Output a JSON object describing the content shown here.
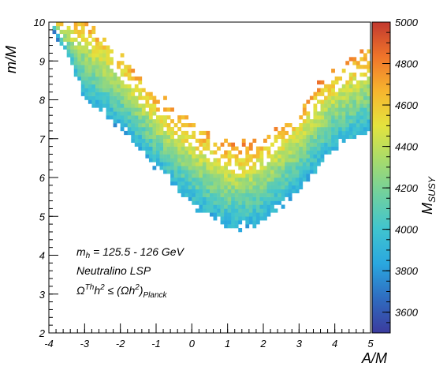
{
  "chart_data": {
    "type": "heatmap",
    "xlabel": "A/M",
    "ylabel": "m/M",
    "xlim": [
      -4,
      5
    ],
    "ylim": [
      2,
      10
    ],
    "x_ticks": [
      -4,
      -3,
      -2,
      -1,
      0,
      1,
      2,
      3,
      4,
      5
    ],
    "y_ticks": [
      2,
      3,
      4,
      5,
      6,
      7,
      8,
      9,
      10
    ],
    "colorbar": {
      "label_main": "M",
      "label_sub": "SUSY",
      "range": [
        3500,
        5000
      ],
      "ticks": [
        3600,
        3800,
        4000,
        4200,
        4400,
        4600,
        4800,
        5000
      ],
      "palette": [
        "#3b3b9e",
        "#2f6cc0",
        "#2aa7df",
        "#40c4cf",
        "#6fd0a0",
        "#a7db6c",
        "#e4e33e",
        "#f7b52e",
        "#f0742a",
        "#c2392f"
      ]
    },
    "allowed_region": {
      "description_points": [
        {
          "x": -3.9,
          "y_low": 9.9,
          "y_high": 10.0
        },
        {
          "x": -3.0,
          "y_low": 8.1,
          "y_high": 10.0
        },
        {
          "x": -2.0,
          "y_low": 7.3,
          "y_high": 9.2
        },
        {
          "x": -1.0,
          "y_low": 6.3,
          "y_high": 8.0
        },
        {
          "x": 0.0,
          "y_low": 5.3,
          "y_high": 7.3
        },
        {
          "x": 1.0,
          "y_low": 4.75,
          "y_high": 6.75
        },
        {
          "x": 1.5,
          "y_low": 4.75,
          "y_high": 6.7
        },
        {
          "x": 2.0,
          "y_low": 4.9,
          "y_high": 6.9
        },
        {
          "x": 3.0,
          "y_low": 5.7,
          "y_high": 7.7
        },
        {
          "x": 4.0,
          "y_low": 6.8,
          "y_high": 8.7
        },
        {
          "x": 5.0,
          "y_low": 7.2,
          "y_high": 9.2
        }
      ],
      "color_trend": "lowest M_SUSY (~3900-4000) along the lower edge, rising to ~4600-4700 along the upper edge"
    },
    "annotations": [
      {
        "id": "mh",
        "text_main": "m",
        "text_sub": "h",
        "text_rest": " = 125.5 - 126 GeV"
      },
      {
        "id": "lsp",
        "text": "Neutralino LSP"
      },
      {
        "id": "relic",
        "omega": "Ω",
        "th": "Th",
        "h": "h",
        "two": "2",
        "le": " ≤ (Ωh",
        "close": ")",
        "planck": "Planck"
      }
    ]
  }
}
